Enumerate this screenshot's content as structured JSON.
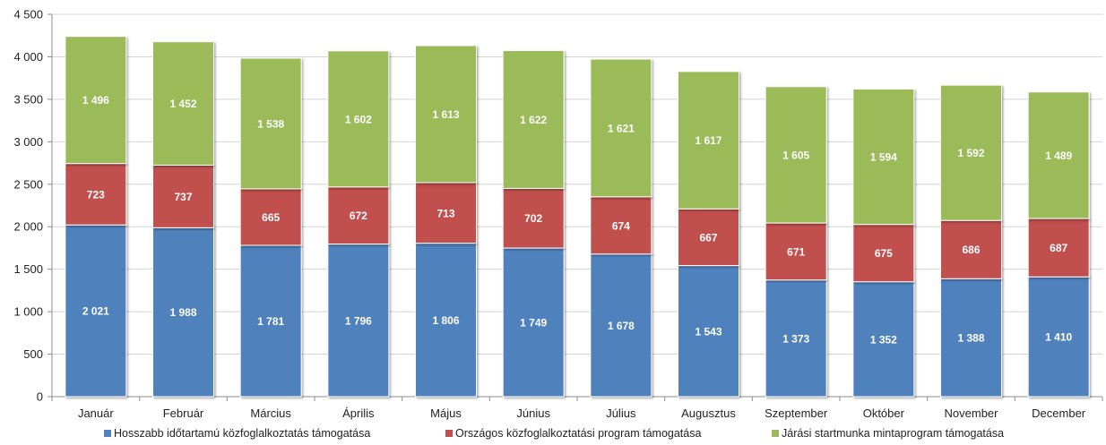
{
  "chart_data": {
    "type": "bar",
    "stacked": true,
    "categories": [
      "Január",
      "Február",
      "Március",
      "Április",
      "Május",
      "Június",
      "Július",
      "Augusztus",
      "Szeptember",
      "Október",
      "November",
      "December"
    ],
    "series": [
      {
        "name": "Hosszabb időtartamú közfoglalkoztatás támogatása",
        "color": "#4f81bd",
        "values": [
          2021,
          1988,
          1781,
          1796,
          1806,
          1749,
          1678,
          1543,
          1373,
          1352,
          1388,
          1410
        ],
        "labels": [
          "2 021",
          "1 988",
          "1 781",
          "1 796",
          "1 806",
          "1 749",
          "1 678",
          "1 543",
          "1 373",
          "1 352",
          "1 388",
          "1 410"
        ]
      },
      {
        "name": "Országos közfoglalkoztatási program támogatása",
        "color": "#c0504d",
        "values": [
          723,
          737,
          665,
          672,
          713,
          702,
          674,
          667,
          671,
          675,
          686,
          687
        ],
        "labels": [
          "723",
          "737",
          "665",
          "672",
          "713",
          "702",
          "674",
          "667",
          "671",
          "675",
          "686",
          "687"
        ]
      },
      {
        "name": "Járási startmunka mintaprogram támogatása",
        "color": "#9bbb59",
        "values": [
          1496,
          1452,
          1538,
          1602,
          1613,
          1622,
          1621,
          1617,
          1605,
          1594,
          1592,
          1489
        ],
        "labels": [
          "1 496",
          "1 452",
          "1 538",
          "1 602",
          "1 613",
          "1 622",
          "1 621",
          "1 617",
          "1 605",
          "1 594",
          "1 592",
          "1 489"
        ]
      }
    ],
    "ylim": [
      0,
      4500
    ],
    "yticks": [
      0,
      500,
      1000,
      1500,
      2000,
      2500,
      3000,
      3500,
      4000,
      4500
    ],
    "ytick_labels": [
      "0",
      "500",
      "1 000",
      "1 500",
      "2 000",
      "2 500",
      "3 000",
      "3 500",
      "4 000",
      "4 500"
    ],
    "grid": true,
    "legend_position": "bottom",
    "title": "",
    "xlabel": "",
    "ylabel": ""
  }
}
